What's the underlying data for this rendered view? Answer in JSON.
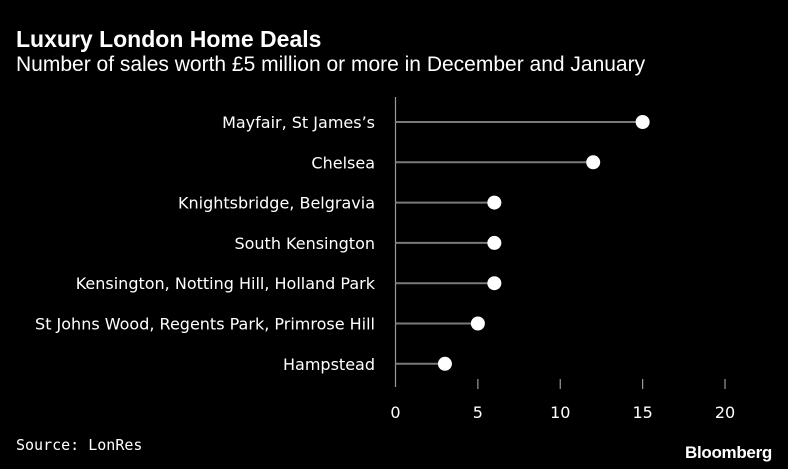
{
  "header": {
    "title": "Luxury London Home Deals",
    "subtitle": "Number of sales worth £5 million or more in December and January"
  },
  "footer": {
    "source": "Source: LonRes",
    "brand": "Bloomberg"
  },
  "colors": {
    "background": "#000000",
    "text": "#ffffff",
    "stem": "#7a7a7a",
    "dot": "#ffffff"
  },
  "chart_data": {
    "type": "lollipop",
    "title": "Luxury London Home Deals",
    "subtitle": "Number of sales worth £5 million or more in December and January",
    "categories": [
      "Mayfair, St James’s",
      "Chelsea",
      "Knightsbridge, Belgravia",
      "South Kensington",
      "Kensington, Notting Hill, Holland Park",
      "St Johns Wood, Regents Park, Primrose Hill",
      "Hampstead"
    ],
    "values": [
      15,
      12,
      6,
      6,
      6,
      5,
      3
    ],
    "xlim": [
      0,
      20
    ],
    "xticks": [
      0,
      5,
      10,
      15,
      20
    ],
    "grid": false,
    "legend": "none"
  }
}
